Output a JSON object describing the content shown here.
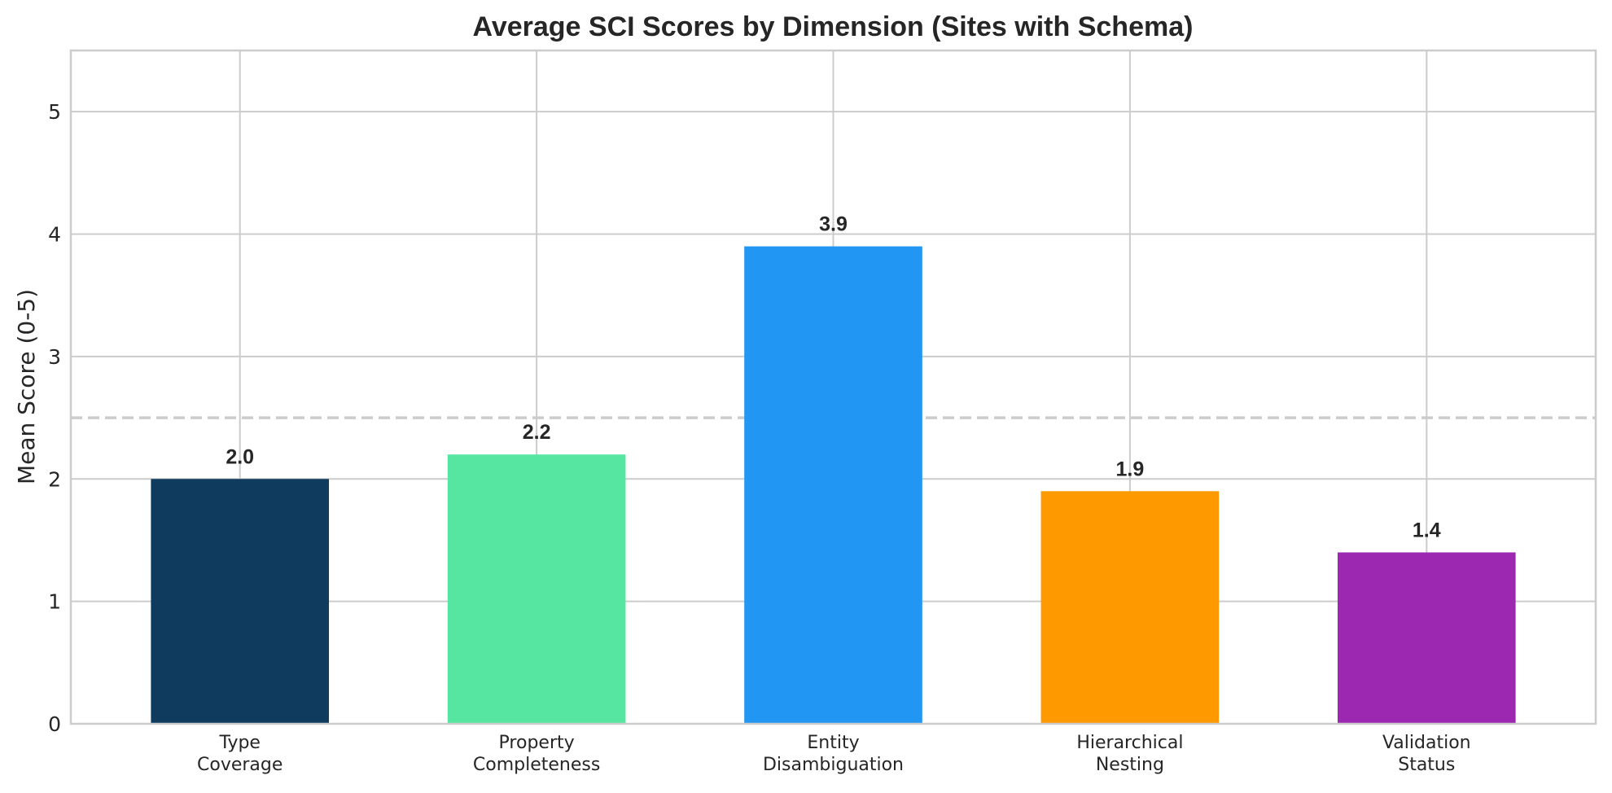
{
  "chart_data": {
    "type": "bar",
    "title": "Average SCI Scores by Dimension (Sites with Schema)",
    "xlabel": "",
    "ylabel": "Mean Score (0-5)",
    "ylim": [
      0,
      5.5
    ],
    "yticks": [
      0,
      1,
      2,
      3,
      4,
      5
    ],
    "grid": true,
    "legend": "none",
    "reference_line": {
      "y": 2.5,
      "style": "dashed",
      "color": "#cccccc"
    },
    "categories": [
      [
        "Type",
        "Coverage"
      ],
      [
        "Property",
        "Completeness"
      ],
      [
        "Entity",
        "Disambiguation"
      ],
      [
        "Hierarchical",
        "Nesting"
      ],
      [
        "Validation",
        "Status"
      ]
    ],
    "values": [
      2.0,
      2.2,
      3.9,
      1.9,
      1.4
    ],
    "data_labels": [
      "2.0",
      "2.2",
      "3.9",
      "1.9",
      "1.4"
    ],
    "colors": [
      "#0e3b5e",
      "#57e6a2",
      "#2196f3",
      "#ff9900",
      "#9c27b0"
    ]
  }
}
